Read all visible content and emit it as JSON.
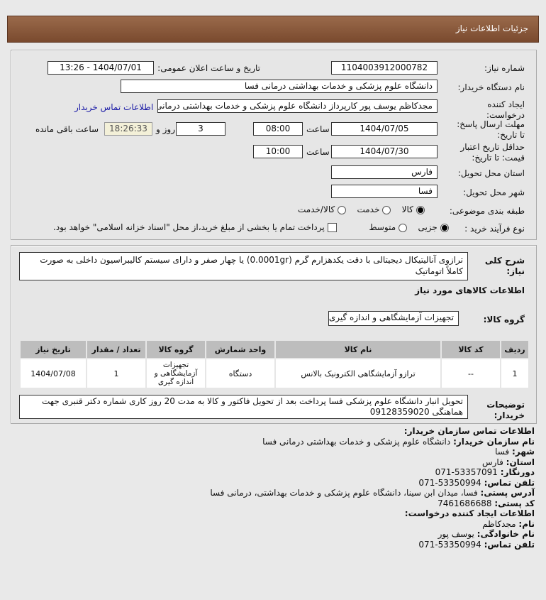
{
  "title": "جزئیات اطلاعات نیاز",
  "form": {
    "need_number_label": "شماره نیاز:",
    "need_number": "1104003912000782",
    "announce_label": "تاریخ و ساعت اعلان عمومی:",
    "announce_value": "1404/07/01 - 13:26",
    "buyer_label": "نام دستگاه خریدار:",
    "buyer": "دانشگاه علوم پزشکی و خدمات بهداشتی درمانی فسا",
    "creator_label": "ایجاد کننده درخواست:",
    "creator": "مجدکاظم یوسف پور کارپرداز دانشگاه علوم پزشکی و خدمات بهداشتی درمانی فسا",
    "contact_link": "اطلاعات تماس خریدار",
    "deadline_label": "مهلت ارسال پاسخ: تا تاریخ:",
    "deadline_date": "1404/07/05",
    "time_label": "ساعت",
    "deadline_time": "08:00",
    "days": "3",
    "days_label": "روز و",
    "remaining": "18:26:33",
    "remaining_label": "ساعت باقی مانده",
    "validity_label": "حداقل تاریخ اعتبار قیمت: تا تاریخ:",
    "validity_date": "1404/07/30",
    "validity_time": "10:00",
    "province_label": "استان محل تحویل:",
    "province": "فارس",
    "city_label": "شهر محل تحویل:",
    "city": "فسا",
    "category_label": "طبقه بندی موضوعی:",
    "category_options": [
      "کالا",
      "خدمت",
      "کالا/خدمت"
    ],
    "category_selected": "کالا",
    "process_label": "نوع فرآیند خرید :",
    "process_options": [
      "جزیی",
      "متوسط"
    ],
    "process_selected": "جزیی",
    "payment_note": "پرداخت تمام یا بخشی از مبلغ خرید،از محل \"اسناد خزانه اسلامی\" خواهد بود."
  },
  "details": {
    "desc_label": "شرح کلی نیاز:",
    "desc": "ترازوی آنالیتیکال دیجیتالی با دقت یکدهزارم گرم (0.0001gr) یا چهار صفر و دارای سیستم کالیبراسیون داخلی به صورت کاملاً اتوماتیک",
    "goods_heading": "اطلاعات کالاهای مورد نیاز",
    "group_label": "گروه کالا:",
    "group": "تجهیزات آزمایشگاهی و اندازه گیری",
    "table": {
      "headers": [
        "ردیف",
        "کد کالا",
        "نام کالا",
        "واحد شمارش",
        "گروه کالا",
        "تعداد / مقدار",
        "تاریخ نیاز"
      ],
      "rows": [
        [
          "1",
          "--",
          "ترازو آزمایشگاهی الکترونیک بالانس",
          "دستگاه",
          "تجهیزات آزمایشگاهی و اندازه گیری",
          "1",
          "1404/07/08"
        ]
      ]
    },
    "notes_label": "توضیحات خریدار:",
    "notes": "تحویل انبار دانشگاه علوم پزشکی فسا پرداخت بعد از تحویل فاکتور و کالا به مدت 20 روز کاری شماره دکتر قنبری جهت هماهنگی 09128359020"
  },
  "contact": {
    "heading": "اطلاعات تماس سازمان خریدار:",
    "org_label": "نام سازمان خریدار:",
    "org": "دانشگاه علوم پزشکی و خدمات بهداشتی درمانی فسا",
    "city_label": "شهر:",
    "city": "فسا",
    "province_label": "استان:",
    "province": "فارس",
    "fax_label": "دورنگار:",
    "fax": "071-53357091",
    "phone_label": "تلفن تماس:",
    "phone": "071-53350994",
    "address_label": "آدرس پستی:",
    "address": "فسا، میدان ابن سینا، دانشگاه علوم پزشکی و خدمات بهداشتی، درمانی فسا",
    "postal_label": "کد پستی:",
    "postal": "7461686688",
    "creator_heading": "اطلاعات ایجاد کننده درخواست:",
    "name_label": "نام:",
    "name": "مجدکاظم",
    "family_label": "نام خانوادگی:",
    "family": "یوسف پور",
    "cphone_label": "تلفن تماس:",
    "cphone": "071-53350994"
  }
}
